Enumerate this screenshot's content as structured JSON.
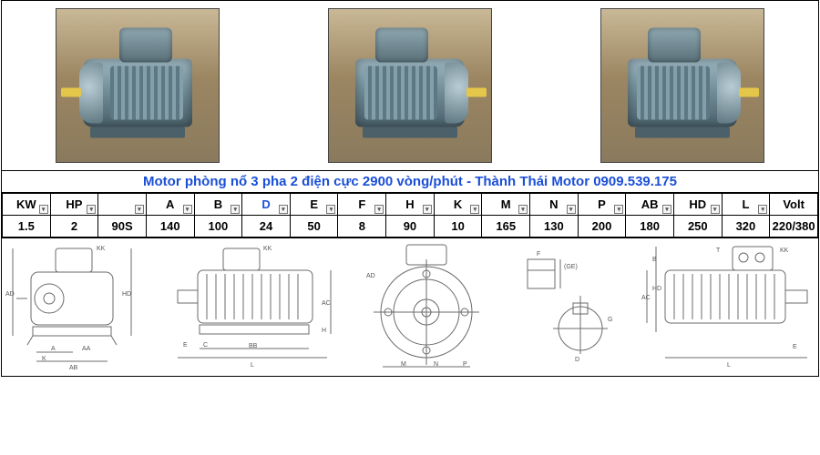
{
  "title": "Motor phòng nổ 3 pha 2 điện cực 2900 vòng/phút - Thành Thái Motor 0909.539.175",
  "title_color": "#1a4fd6",
  "table": {
    "columns": [
      "KW",
      "HP",
      "",
      "A",
      "B",
      "D",
      "E",
      "F",
      "H",
      "K",
      "M",
      "N",
      "P",
      "AB",
      "HD",
      "L",
      "Volt"
    ],
    "highlight_column": "D",
    "values": [
      "1.5",
      "2",
      "90S",
      "140",
      "100",
      "24",
      "50",
      "8",
      "90",
      "10",
      "165",
      "130",
      "200",
      "180",
      "250",
      "320",
      "220/380"
    ],
    "dropdown_columns": [
      0,
      1,
      2,
      3,
      4,
      5,
      6,
      7,
      8,
      9,
      10,
      11,
      12,
      13,
      14,
      15
    ],
    "border_color": "#000000",
    "font_size": 13
  },
  "photos": {
    "count": 3,
    "motor_body_color": "#6f8b95",
    "motor_accent_color": "#e4c64a",
    "background_gradient": [
      "#c9b896",
      "#8a7a5d"
    ]
  },
  "diagrams": {
    "stroke": "#6b6b6b",
    "stroke_width": 1,
    "labels": [
      "A",
      "AA",
      "K",
      "AB",
      "AD",
      "HD",
      "KK",
      "BB",
      "E",
      "C",
      "L",
      "AC",
      "H",
      "M",
      "N",
      "P",
      "AD",
      "(GE)",
      "F",
      "G",
      "D",
      "T",
      "E",
      "HD",
      "L",
      "AC",
      "KK"
    ]
  }
}
